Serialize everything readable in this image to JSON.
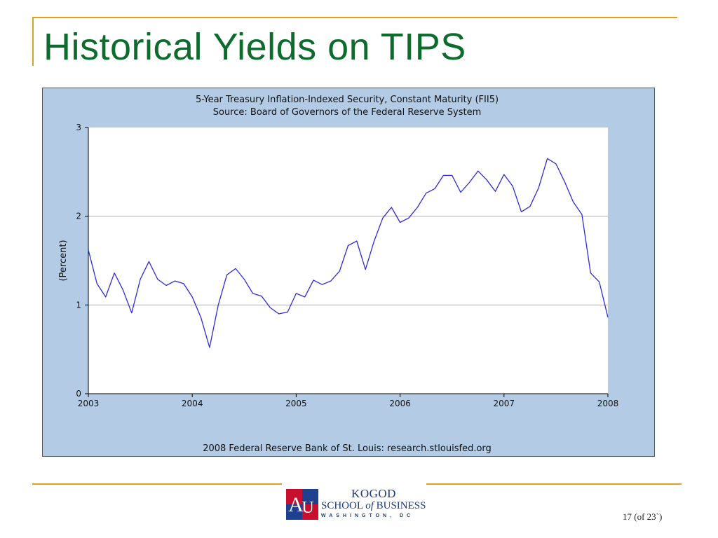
{
  "slide": {
    "title": "Historical Yields on TIPS",
    "page_number": "17 (of 23`)",
    "accent_color": "#e0a020",
    "title_color": "#0d6b2e"
  },
  "logo": {
    "line1": "KOGOD",
    "line2_a": "SCHOOL ",
    "line2_b": "of",
    "line2_c": " BUSINESS",
    "line3": "WASHINGTON, DC",
    "mark_letters": "AU",
    "mark_colors": {
      "red": "#c8102e",
      "blue": "#1f3f8f"
    }
  },
  "chart_data": {
    "type": "line",
    "title": "5-Year Treasury Inflation-Indexed Security, Constant Maturity (FII5)",
    "subtitle": "Source: Board of Governors of the Federal Reserve System",
    "footer": "2008 Federal Reserve Bank of St. Louis: research.stlouisfed.org",
    "xlabel": "",
    "ylabel": "(Percent)",
    "xlim": [
      2003,
      2008
    ],
    "ylim": [
      0,
      3
    ],
    "xticks": [
      "2003",
      "2004",
      "2005",
      "2006",
      "2007",
      "2008"
    ],
    "yticks": [
      "0",
      "1",
      "2",
      "3"
    ],
    "grid": "horizontal",
    "background_color": "#b3cbe4",
    "plot_color": "#ffffff",
    "series": [
      {
        "color": "#2b2bd9",
        "x": [
          "2003-01",
          "2003-02",
          "2003-03",
          "2003-04",
          "2003-05",
          "2003-06",
          "2003-07",
          "2003-08",
          "2003-09",
          "2003-10",
          "2003-11",
          "2003-12",
          "2004-01",
          "2004-02",
          "2004-03",
          "2004-04",
          "2004-05",
          "2004-06",
          "2004-07",
          "2004-08",
          "2004-09",
          "2004-10",
          "2004-11",
          "2004-12",
          "2005-01",
          "2005-02",
          "2005-03",
          "2005-04",
          "2005-05",
          "2005-06",
          "2005-07",
          "2005-08",
          "2005-09",
          "2005-10",
          "2005-11",
          "2005-12",
          "2006-01",
          "2006-02",
          "2006-03",
          "2006-04",
          "2006-05",
          "2006-06",
          "2006-07",
          "2006-08",
          "2006-09",
          "2006-10",
          "2006-11",
          "2006-12",
          "2007-01",
          "2007-02",
          "2007-03",
          "2007-04",
          "2007-05",
          "2007-06",
          "2007-07",
          "2007-08",
          "2007-09",
          "2007-10",
          "2007-11",
          "2007-12",
          "2008-01"
        ],
        "values": [
          1.62,
          1.24,
          1.09,
          1.36,
          1.17,
          0.91,
          1.29,
          1.49,
          1.29,
          1.22,
          1.27,
          1.24,
          1.09,
          0.86,
          0.52,
          1.0,
          1.34,
          1.41,
          1.29,
          1.13,
          1.1,
          0.97,
          0.9,
          0.92,
          1.13,
          1.09,
          1.28,
          1.23,
          1.27,
          1.38,
          1.67,
          1.72,
          1.4,
          1.72,
          1.98,
          2.1,
          1.93,
          1.98,
          2.1,
          2.26,
          2.31,
          2.46,
          2.46,
          2.27,
          2.38,
          2.51,
          2.41,
          2.28,
          2.47,
          2.34,
          2.05,
          2.11,
          2.32,
          2.65,
          2.59,
          2.39,
          2.16,
          2.02,
          1.36,
          1.26,
          0.86
        ]
      }
    ]
  }
}
